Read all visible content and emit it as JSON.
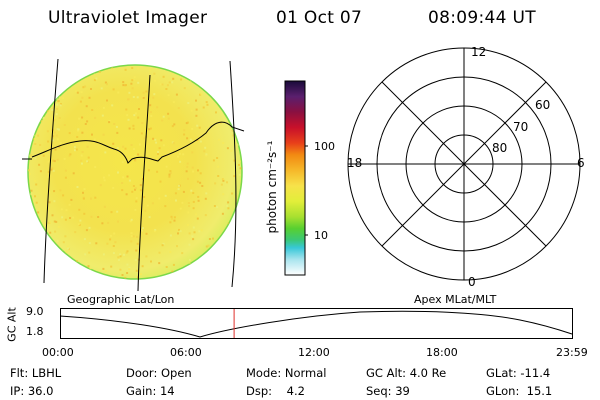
{
  "header": {
    "title": "Ultraviolet Imager",
    "date": "01 Oct 07",
    "time": "08:09:44 UT"
  },
  "colorbar": {
    "unit_label": "photon cm⁻²s⁻¹",
    "ticks": [
      "100",
      "10"
    ],
    "colors": [
      "#1a0b3a",
      "#5a1f6e",
      "#8a1040",
      "#c8102a",
      "#e8401a",
      "#f28a12",
      "#f6b82a",
      "#f7e24a",
      "#e2ee3a",
      "#a8e030",
      "#58d030",
      "#3ac878",
      "#38c8d8",
      "#a8e4ee",
      "#ffffff"
    ]
  },
  "polar": {
    "mlt_labels": {
      "top": "12",
      "left": "18",
      "right": "6",
      "bottom": "0"
    },
    "lat_labels": [
      "60",
      "70",
      "80"
    ]
  },
  "timeline": {
    "y_axis_label": "GC Alt",
    "y_ticks": [
      "9.0",
      "1.8"
    ],
    "left_label": "Geographic Lat/Lon",
    "right_label": "Apex MLat/MLT",
    "x_ticks": [
      "00:00",
      "06:00",
      "12:00",
      "18:00",
      "23:59"
    ],
    "current_time": "08:09:44",
    "marker_color": "#e0302a"
  },
  "status": {
    "row1": [
      {
        "key": "Flt:",
        "value": "LBHL"
      },
      {
        "key": "Door:",
        "value": "Open"
      },
      {
        "key": "Mode:",
        "value": "Normal"
      },
      {
        "key": "GC Alt:",
        "value": "4.0 Re"
      },
      {
        "key": "GLat:",
        "value": "-11.4"
      }
    ],
    "row2": [
      {
        "key": "IP:",
        "value": "36.0"
      },
      {
        "key": "Gain:",
        "value": "14"
      },
      {
        "key": "Dsp:",
        "value": "4.2"
      },
      {
        "key": "Seq:",
        "value": "39"
      },
      {
        "key": "GLon:",
        "value": "15.1"
      }
    ]
  }
}
